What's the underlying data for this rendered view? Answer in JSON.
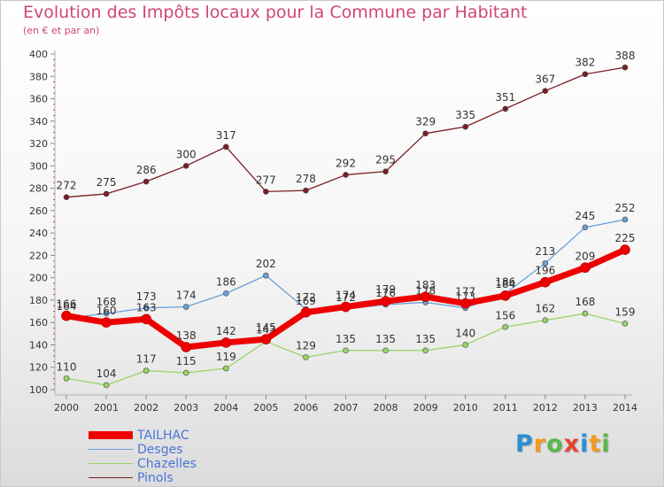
{
  "chart_data": {
    "type": "line",
    "title": "Evolution des Impôts locaux pour la Commune par Habitant",
    "subtitle": "(en € et par an)",
    "x": [
      2000,
      2001,
      2002,
      2003,
      2004,
      2005,
      2006,
      2007,
      2008,
      2009,
      2010,
      2011,
      2012,
      2013,
      2014
    ],
    "ylim": [
      100,
      400
    ],
    "yticks": [
      100,
      120,
      140,
      160,
      180,
      200,
      220,
      240,
      260,
      280,
      300,
      320,
      340,
      360,
      380,
      400
    ],
    "grid": false,
    "legend_position": "bottom-left",
    "series": [
      {
        "name": "Pinols",
        "color": "#7a1f24",
        "values": [
          272,
          275,
          286,
          300,
          317,
          277,
          278,
          292,
          295,
          329,
          335,
          351,
          367,
          382,
          388
        ]
      },
      {
        "name": "Chazelles",
        "color": "#99d466",
        "values": [
          110,
          104,
          117,
          115,
          119,
          143,
          129,
          135,
          135,
          135,
          140,
          156,
          162,
          168,
          159
        ]
      },
      {
        "name": "Desges",
        "color": "#6a9fd8",
        "values": [
          164,
          168,
          173,
          174,
          186,
          202,
          172,
          172,
          176,
          178,
          173,
          186,
          213,
          245,
          252
        ]
      },
      {
        "name": "TAILHAC",
        "color": "#ee0000",
        "values": [
          166,
          160,
          163,
          138,
          142,
          145,
          169,
          174,
          179,
          183,
          177,
          184,
          196,
          209,
          225
        ]
      }
    ]
  },
  "legend": {
    "items": [
      "TAILHAC",
      "Desges",
      "Chazelles",
      "Pinols"
    ]
  },
  "brand": {
    "letters": [
      "P",
      "r",
      "o",
      "x",
      "i",
      "t",
      "i"
    ],
    "colors": [
      "#2a8fd6",
      "#f29a1f",
      "#58b848",
      "#e8452c",
      "#2a8fd6",
      "#f29a1f",
      "#58b848"
    ]
  }
}
